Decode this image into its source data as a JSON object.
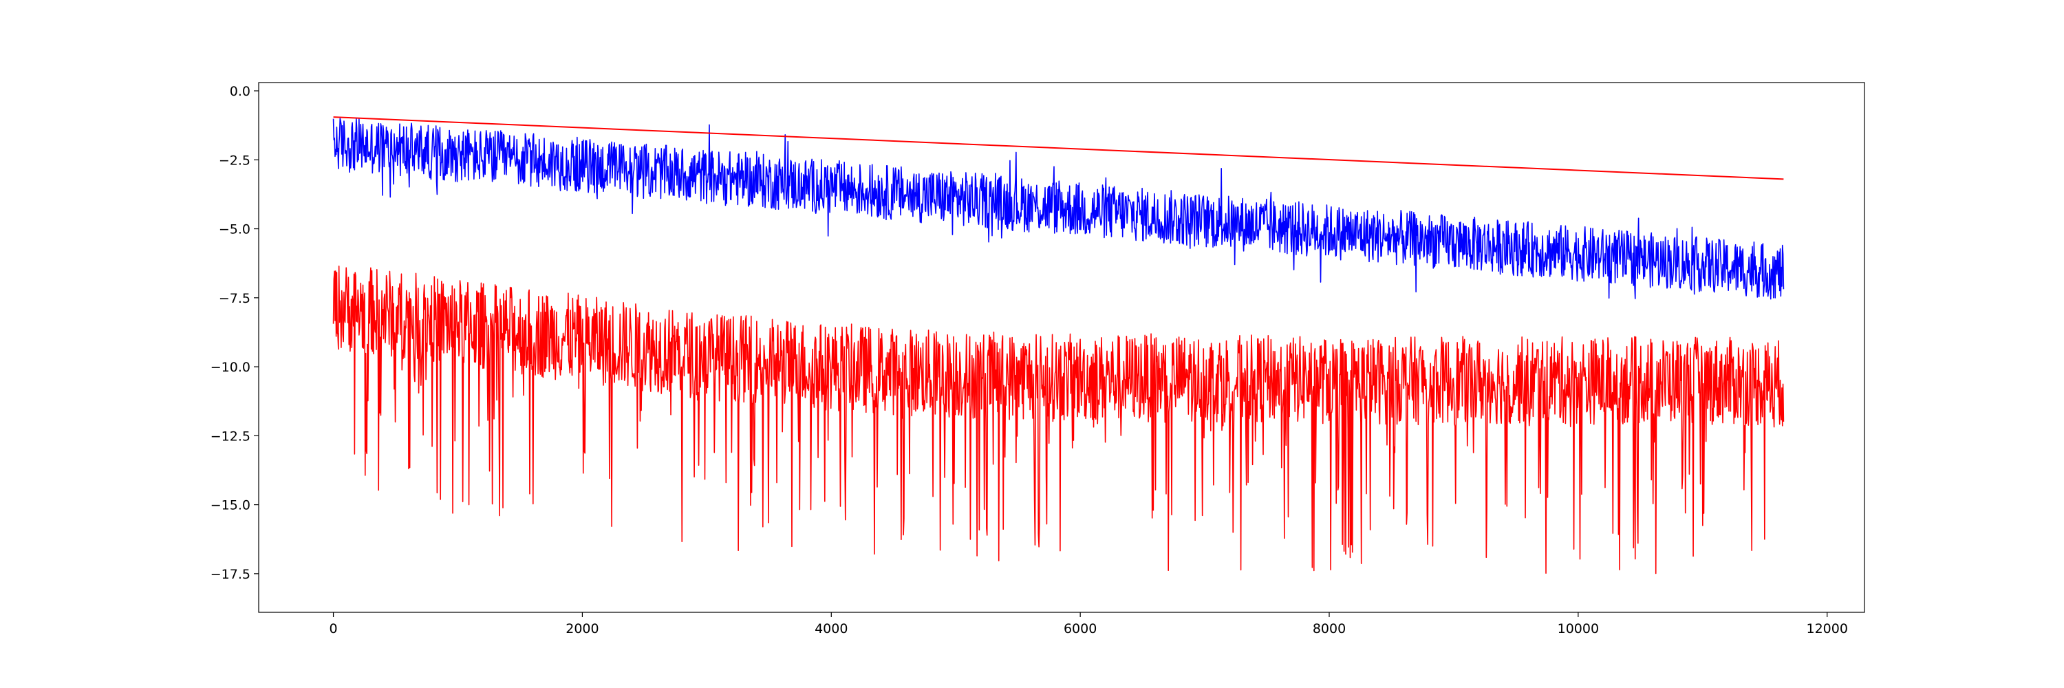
{
  "chart_data": {
    "type": "line",
    "title": "",
    "xlabel": "",
    "ylabel": "",
    "xlim": [
      -600,
      12300
    ],
    "ylim": [
      -18.9,
      0.3
    ],
    "x_ticks": [
      0,
      2000,
      4000,
      6000,
      8000,
      10000,
      12000
    ],
    "x_tick_labels": [
      "0",
      "2000",
      "4000",
      "6000",
      "8000",
      "10000",
      "12000"
    ],
    "y_ticks": [
      0.0,
      -2.5,
      -5.0,
      -7.5,
      -10.0,
      -12.5,
      -15.0,
      -17.5
    ],
    "y_tick_labels": [
      "0.0",
      "−2.5",
      "−5.0",
      "−7.5",
      "−10.0",
      "−12.5",
      "−15.0",
      "−17.5"
    ],
    "grid": false,
    "legend": "none",
    "series": [
      {
        "color": "#0000ff",
        "description_points": {
          "x": [
            0,
            1000,
            2000,
            3000,
            4000,
            5000,
            6000,
            7000,
            8000,
            9000,
            10000,
            11000,
            11650
          ],
          "y": [
            -1.9,
            -2.3,
            -2.7,
            -3.1,
            -3.5,
            -3.9,
            -4.3,
            -4.7,
            -5.1,
            -5.5,
            -5.9,
            -6.3,
            -6.6
          ]
        },
        "n_points": 11650,
        "noise_band": 1.0
      },
      {
        "color": "#ff0000",
        "description_points": {
          "x": [
            0,
            11650
          ],
          "y": [
            -0.95,
            -3.2
          ]
        },
        "n_points": 2
      },
      {
        "color": "#ff0000",
        "description_points": {
          "x": [
            0,
            1000,
            2000,
            3000,
            4000,
            5000,
            6000,
            7000,
            8000,
            9000,
            10000,
            11000,
            11650
          ],
          "y": [
            -7.8,
            -8.4,
            -9.0,
            -9.6,
            -10.0,
            -10.3,
            -10.4,
            -10.4,
            -10.5,
            -10.5,
            -10.5,
            -10.5,
            -10.6
          ]
        },
        "n_points": 11650,
        "noise_band": 1.6,
        "min_y": -18.0
      }
    ]
  }
}
